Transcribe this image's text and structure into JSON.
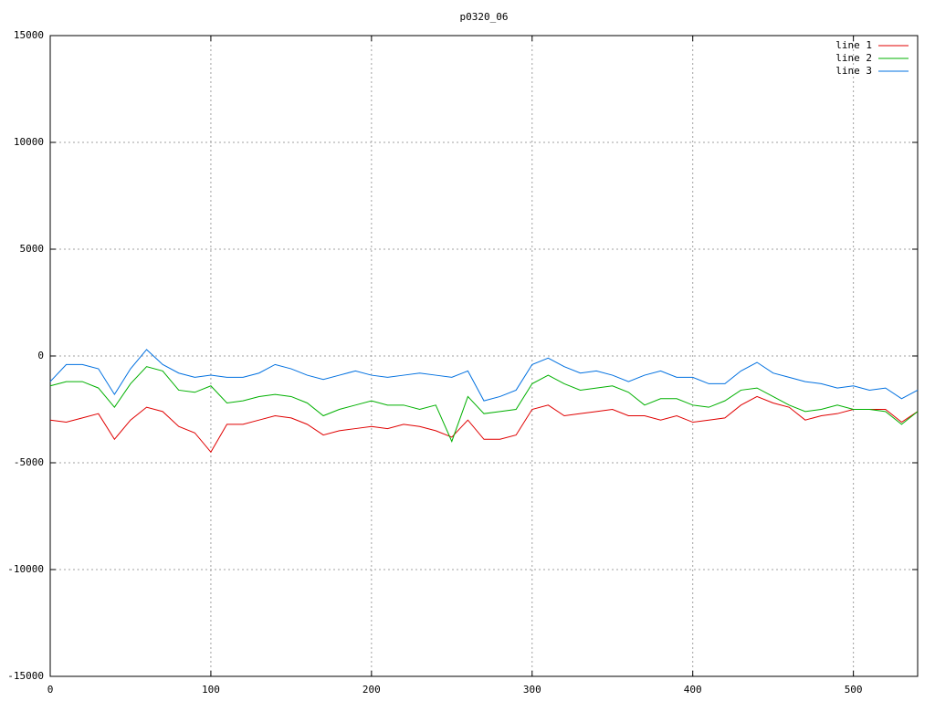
{
  "chart_data": {
    "type": "line",
    "title": "p0320_06",
    "x": [
      0,
      10,
      20,
      30,
      40,
      50,
      60,
      70,
      80,
      90,
      100,
      110,
      120,
      130,
      140,
      150,
      160,
      170,
      180,
      190,
      200,
      210,
      220,
      230,
      240,
      250,
      260,
      270,
      280,
      290,
      300,
      310,
      320,
      330,
      340,
      350,
      360,
      370,
      380,
      390,
      400,
      410,
      420,
      430,
      440,
      450,
      460,
      470,
      480,
      490,
      500,
      510,
      520,
      530,
      540
    ],
    "series": [
      {
        "name": "line 1",
        "color": "#e00000",
        "values": [
          -3000,
          -3100,
          -2900,
          -2700,
          -3900,
          -3000,
          -2400,
          -2600,
          -3300,
          -3600,
          -4500,
          -3200,
          -3200,
          -3000,
          -2800,
          -2900,
          -3200,
          -3700,
          -3500,
          -3400,
          -3300,
          -3400,
          -3200,
          -3300,
          -3500,
          -3800,
          -3000,
          -3900,
          -3900,
          -3700,
          -2500,
          -2300,
          -2800,
          -2700,
          -2600,
          -2500,
          -2800,
          -2800,
          -3000,
          -2800,
          -3100,
          -3000,
          -2900,
          -2300,
          -1900,
          -2200,
          -2400,
          -3000,
          -2800,
          -2700,
          -2500,
          -2500,
          -2500,
          -3100,
          -2600
        ]
      },
      {
        "name": "line 2",
        "color": "#00b000",
        "values": [
          -1400,
          -1200,
          -1200,
          -1500,
          -2400,
          -1300,
          -500,
          -700,
          -1600,
          -1700,
          -1400,
          -2200,
          -2100,
          -1900,
          -1800,
          -1900,
          -2200,
          -2800,
          -2500,
          -2300,
          -2100,
          -2300,
          -2300,
          -2500,
          -2300,
          -4000,
          -1900,
          -2700,
          -2600,
          -2500,
          -1300,
          -900,
          -1300,
          -1600,
          -1500,
          -1400,
          -1700,
          -2300,
          -2000,
          -2000,
          -2300,
          -2400,
          -2100,
          -1600,
          -1500,
          -1900,
          -2300,
          -2600,
          -2500,
          -2300,
          -2500,
          -2500,
          -2600,
          -3200,
          -2600
        ]
      },
      {
        "name": "line 3",
        "color": "#0070e0",
        "values": [
          -1200,
          -400,
          -400,
          -600,
          -1800,
          -600,
          300,
          -400,
          -800,
          -1000,
          -900,
          -1000,
          -1000,
          -800,
          -400,
          -600,
          -900,
          -1100,
          -900,
          -700,
          -900,
          -1000,
          -900,
          -800,
          -900,
          -1000,
          -700,
          -2100,
          -1900,
          -1600,
          -400,
          -100,
          -500,
          -800,
          -700,
          -900,
          -1200,
          -900,
          -700,
          -1000,
          -1000,
          -1300,
          -1300,
          -700,
          -300,
          -800,
          -1000,
          -1200,
          -1300,
          -1500,
          -1400,
          -1600,
          -1500,
          -2000,
          -1600
        ]
      }
    ],
    "xlim": [
      0,
      540
    ],
    "xticks": [
      0,
      100,
      200,
      300,
      400,
      500
    ],
    "ylim": [
      -15000,
      15000
    ],
    "yticks": [
      -15000,
      -10000,
      -5000,
      0,
      5000,
      10000,
      15000
    ],
    "grid": true,
    "legend": "top-right"
  }
}
